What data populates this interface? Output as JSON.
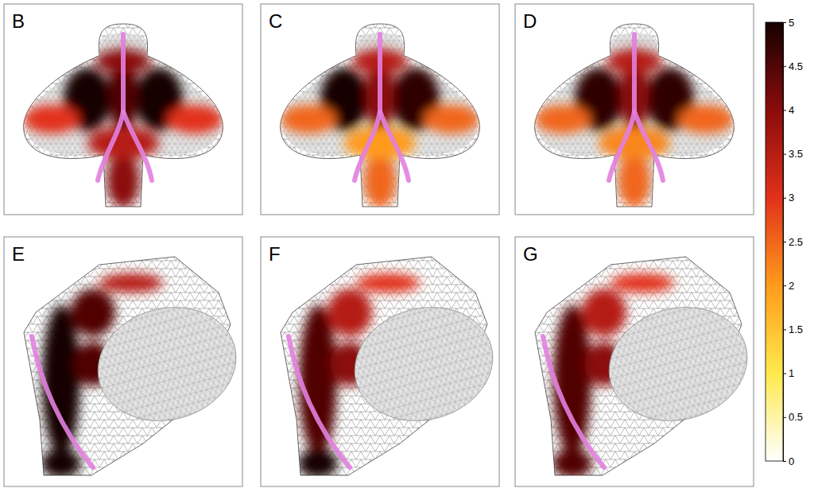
{
  "chart_data": {
    "type": "mesh_heatmap",
    "rows": [
      {
        "panels": [
          {
            "label": "B",
            "cells": [
              5,
              5,
              4.5,
              4,
              3,
              3,
              4,
              3.5
            ]
          },
          {
            "label": "C",
            "cells": [
              5,
              4.8,
              4,
              2.5,
              2.5,
              2.5,
              3.5,
              2
            ]
          },
          {
            "label": "D",
            "cells": [
              4.8,
              4.8,
              4,
              2.5,
              2.5,
              2.5,
              3.5,
              2.2
            ]
          }
        ]
      },
      {
        "panels": [
          {
            "label": "E",
            "cells": [
              5,
              4.5,
              4.5,
              5,
              3.5
            ]
          },
          {
            "label": "F",
            "cells": [
              4.5,
              3.5,
              4,
              5,
              3
            ]
          },
          {
            "label": "G",
            "cells": [
              4.5,
              3.5,
              4,
              4.5,
              3
            ]
          }
        ]
      }
    ],
    "colorbar": {
      "range": [
        0,
        5
      ],
      "ticks": [
        0,
        0.5,
        1,
        1.5,
        2,
        2.5,
        3,
        3.5,
        4,
        4.5,
        5
      ]
    }
  }
}
